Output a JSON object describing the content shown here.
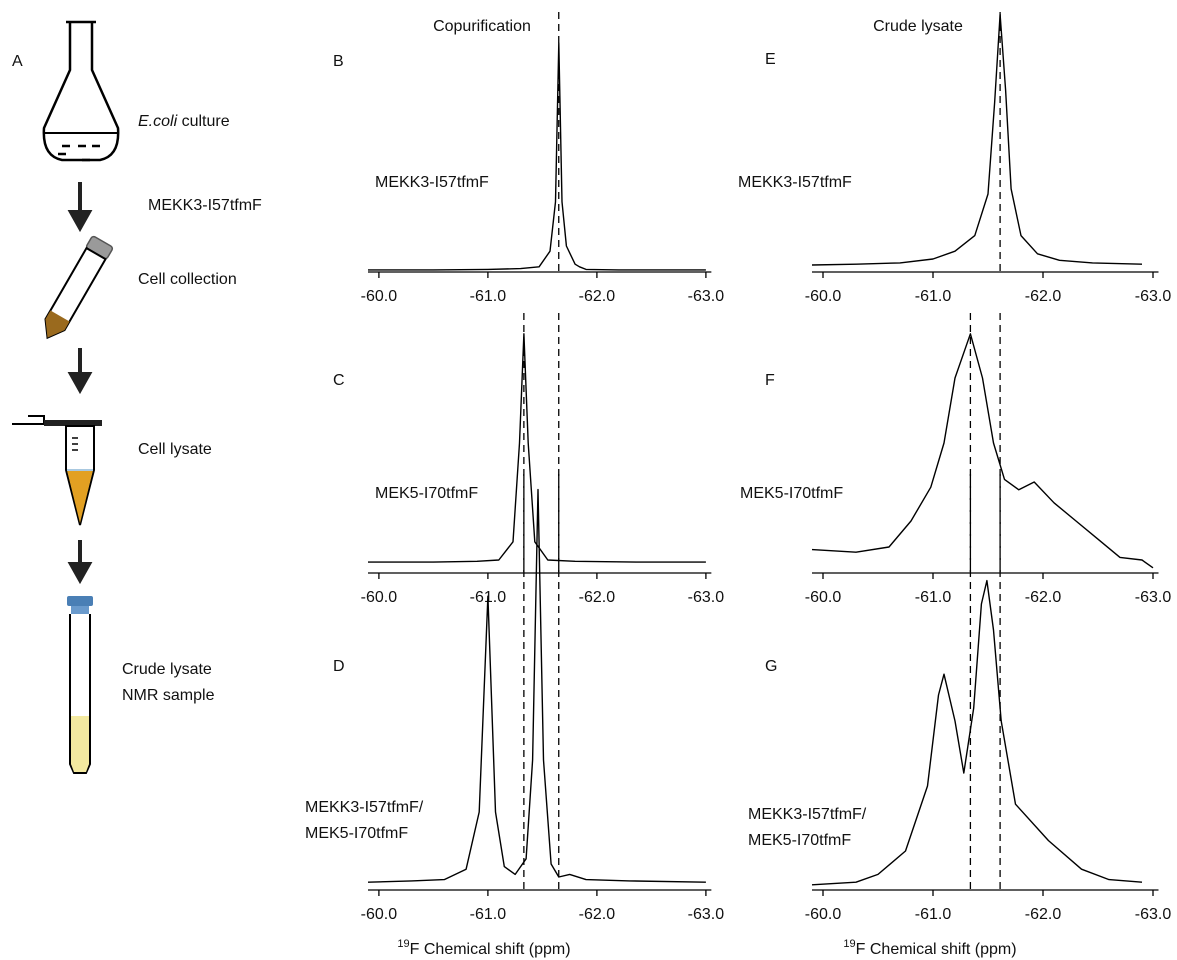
{
  "panel_a": {
    "label": "A",
    "organism": "E.coli",
    "culture": "culture",
    "construct": "MEKK3-I57tfmF",
    "collection": "Cell collection",
    "lysate": "Cell lysate",
    "sample": [
      "Crude lysate",
      "NMR sample"
    ]
  },
  "chart_data": [
    {
      "type": "line",
      "panel": "B",
      "title": "Copurification",
      "label": [
        "MEKK3-I57tfmF"
      ],
      "color": "#000000",
      "x": [
        -59.9,
        -60.5,
        -61.0,
        -61.3,
        -61.47,
        -61.57,
        -61.62,
        -61.65,
        -61.68,
        -61.72,
        -61.8,
        -61.84,
        -61.9,
        -62.2,
        -62.6,
        -63.0
      ],
      "values": [
        0.8,
        0.8,
        1,
        1.3,
        2,
        8,
        27,
        88,
        27,
        10,
        3,
        2,
        1,
        0.8,
        0.8,
        0.8
      ],
      "xlim": [
        -59.9,
        -63.05
      ],
      "ylim": [
        0,
        100
      ],
      "reference_lines": [
        -61.65
      ],
      "xticks": [
        {
          "value": -60,
          "label": "-60.0"
        },
        {
          "value": -61,
          "label": "-61.0"
        },
        {
          "value": -62,
          "label": "-62.0"
        },
        {
          "value": -63,
          "label": "-63.0"
        }
      ]
    },
    {
      "type": "line",
      "panel": "C",
      "label": [
        "MEK5-I70tfmF"
      ],
      "color": "#000000",
      "x": [
        -59.9,
        -60.5,
        -60.9,
        -61.1,
        -61.23,
        -61.29,
        -61.33,
        -61.37,
        -61.43,
        -61.55,
        -61.8,
        -62.4,
        -63.0
      ],
      "values": [
        4.2,
        4.2,
        4.5,
        5,
        12,
        50,
        92,
        50,
        12,
        5,
        4.5,
        4.2,
        4.2
      ],
      "xlim": [
        -59.9,
        -63.05
      ],
      "ylim": [
        0,
        100
      ],
      "reference_lines": [
        -61.33,
        -61.65
      ],
      "xticks": [
        {
          "value": -60,
          "label": "-60.0"
        },
        {
          "value": -61,
          "label": "-61.0"
        },
        {
          "value": -62,
          "label": "-62.0"
        },
        {
          "value": -63,
          "label": "-63.0"
        }
      ]
    },
    {
      "type": "line",
      "panel": "D",
      "label": [
        "MEKK3-I57tfmF/",
        "MEK5-I70tfmF"
      ],
      "xlabel_superscript": "19",
      "xlabel": "F  Chemical shift (ppm)",
      "color": "#000000",
      "x": [
        -59.9,
        -60.3,
        -60.6,
        -60.8,
        -60.92,
        -61.0,
        -61.07,
        -61.15,
        -61.25,
        -61.35,
        -61.41,
        -61.46,
        -61.51,
        -61.58,
        -61.65,
        -61.75,
        -61.9,
        -62.3,
        -63.0
      ],
      "values": [
        3,
        3.5,
        4,
        8,
        30,
        113,
        30,
        9,
        6,
        12,
        50,
        154,
        50,
        10,
        5,
        6,
        4,
        3.5,
        3
      ],
      "xlim": [
        -59.9,
        -63.05
      ],
      "ylim": [
        0,
        160
      ],
      "reference_lines": [
        -61.33,
        -61.65
      ],
      "xticks": [
        {
          "value": -60,
          "label": "-60.0"
        },
        {
          "value": -61,
          "label": "-61.0"
        },
        {
          "value": -62,
          "label": "-62.0"
        },
        {
          "value": -63,
          "label": "-63.0"
        }
      ]
    },
    {
      "type": "line",
      "panel": "E",
      "title": "Crude lysate",
      "label": [
        "MEKK3-I57tfmF"
      ],
      "color": "#000000",
      "x": [
        -59.9,
        -60.3,
        -60.7,
        -61.0,
        -61.2,
        -61.38,
        -61.5,
        -61.56,
        -61.61,
        -61.66,
        -61.71,
        -61.8,
        -61.95,
        -62.15,
        -62.45,
        -62.9
      ],
      "values": [
        2.7,
        3,
        3.5,
        5,
        8,
        14,
        30,
        65,
        99,
        70,
        32,
        14,
        7,
        4.5,
        3.5,
        3
      ],
      "xlim": [
        -59.9,
        -63.05
      ],
      "ylim": [
        0,
        100
      ],
      "reference_lines": [
        -61.61
      ],
      "xticks": [
        {
          "value": -60,
          "label": "-60.0"
        },
        {
          "value": -61,
          "label": "-61.0"
        },
        {
          "value": -62,
          "label": "-62.0"
        },
        {
          "value": -63,
          "label": "-63.0"
        }
      ]
    },
    {
      "type": "line",
      "panel": "F",
      "label": [
        "MEK5-I70tfmF"
      ],
      "color": "#000000",
      "x": [
        -59.9,
        -60.3,
        -60.6,
        -60.8,
        -60.98,
        -61.1,
        -61.2,
        -61.34,
        -61.45,
        -61.55,
        -61.65,
        -61.78,
        -61.92,
        -62.1,
        -62.3,
        -62.5,
        -62.7,
        -62.9,
        -63.0
      ],
      "values": [
        9,
        8,
        10,
        20,
        33,
        50,
        75,
        92,
        75,
        50,
        36,
        32,
        35,
        27,
        20,
        13,
        6,
        5,
        2
      ],
      "xlim": [
        -59.9,
        -63.05
      ],
      "ylim": [
        0,
        100
      ],
      "reference_lines": [
        -61.34,
        -61.61
      ],
      "xticks": [
        {
          "value": -60,
          "label": "-60.0"
        },
        {
          "value": -61,
          "label": "-61.0"
        },
        {
          "value": -62,
          "label": "-62.0"
        },
        {
          "value": -63,
          "label": "-63.0"
        }
      ]
    },
    {
      "type": "line",
      "panel": "G",
      "label": [
        "MEKK3-I57tfmF/",
        "MEK5-I70tfmF"
      ],
      "xlabel_superscript": "19",
      "xlabel": "F  Chemical shift (ppm)",
      "color": "#000000",
      "x": [
        -59.9,
        -60.3,
        -60.5,
        -60.75,
        -60.95,
        -61.05,
        -61.1,
        -61.2,
        -61.28,
        -61.37,
        -61.44,
        -61.49,
        -61.55,
        -61.62,
        -61.75,
        -62.05,
        -62.35,
        -62.6,
        -62.9
      ],
      "values": [
        2,
        3,
        6,
        15,
        40,
        75,
        83,
        65,
        45,
        70,
        110,
        119,
        100,
        65,
        33,
        19,
        8,
        4,
        3
      ],
      "xlim": [
        -59.9,
        -63.05
      ],
      "ylim": [
        0,
        160
      ],
      "reference_lines": [
        -61.34,
        -61.61
      ],
      "xticks": [
        {
          "value": -60,
          "label": "-60.0"
        },
        {
          "value": -61,
          "label": "-61.0"
        },
        {
          "value": -62,
          "label": "-62.0"
        },
        {
          "value": -63,
          "label": "-63.0"
        }
      ]
    }
  ]
}
